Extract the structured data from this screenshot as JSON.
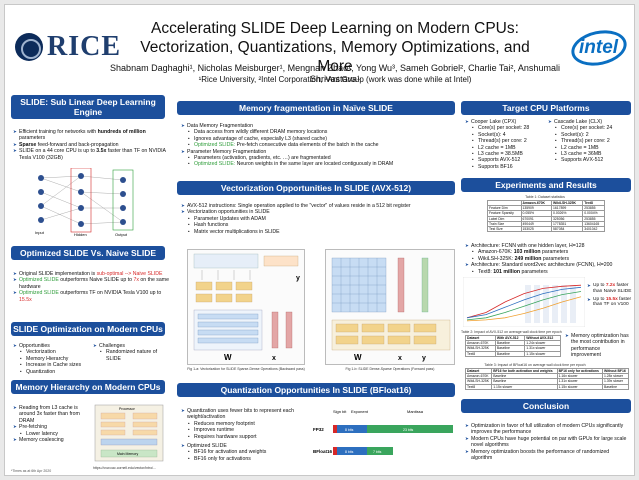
{
  "header": {
    "rice_logo": "RICE",
    "intel_logo": "intel",
    "title_line1": "Accelerating SLIDE Deep Learning on Modern CPUs:",
    "title_line2": "Vectorization, Quantizations, Memory Optimizations, and More",
    "authors": "Shabnam Daghaghi¹, Nicholas Meisburger¹, Mengnan Zhao¹, Yong Wu³, Sameh Gobriel², Charlie Tai², Anshumali Shrivastava¹",
    "affiliations": "¹Rice University, ²Intel Corporation, ³Ant Group (work was done while at Intel)"
  },
  "slide_intro": {
    "title": "SLIDE: Sub Linear Deep Learning Engine",
    "b1_pre": "Efficient training for networks with ",
    "b1_bold": "hundreds of million",
    "b1_post": " parameters",
    "b2_bold": "Sparse",
    "b2_post": " feed-forward and back-propagation",
    "b3_pre": "SLIDE on a 44 core CPU is up to ",
    "b3_bold": "3.5x",
    "b3_post": " faster than TF on NVIDIA Tesla V100 (32GB)",
    "fig_input": "Input",
    "fig_hidden": "Hidden",
    "fig_output": "Output"
  },
  "optimized_vs_naive": {
    "title": "Optimized SLIDE Vs. Naive SLIDE",
    "b1_pre": "Original SLIDE implementation is ",
    "b1_red": "sub-optimal --> Naive SLIDE",
    "b2_green": "Optimized SLIDE",
    "b2_mid": " outperforms Naive SLIDE up to ",
    "b2_red": "7x",
    "b2_post": " on the same hardware",
    "b3_green": "Optimized SLIDE",
    "b3_mid": " outperforms TF on NVIDIA Tesla V100 up to ",
    "b3_red": "15.5x"
  },
  "opt_modern": {
    "title": "SLIDE Optimization on Modern CPUs",
    "opportunities": "Opportunities",
    "opp_items": [
      "Vectorization",
      "Memory Hierarchy",
      "Increase in Cache sizes",
      "Quantization"
    ],
    "challenges": "Challenges",
    "chal_items": [
      "Randomized nature of SLIDE"
    ]
  },
  "mem_hier": {
    "title": "Memory Hierarchy on Modern CPUs",
    "b1": "Reading from L3 cache is around 3x faster than from DRAM",
    "b2": "Pre-fetching",
    "b2_sub": "Lower latency",
    "b3": "Memory coalescing",
    "fig_top": "Processor",
    "fig_bottom": "Main Memory",
    "url": "https://cvw.cac.cornell.edu/vector/intro/..."
  },
  "mem_frag": {
    "title": "Memory fragmentation in Naïve SLIDE",
    "b1": "Data Memory Fragmentation",
    "b1_subs": [
      "Data access from wildly different DRAM memory locations",
      "Ignores advantage of cache, especially L3 (shared cache)"
    ],
    "b1_opt_green": "Optimized SLIDE:",
    "b1_opt": " Pre-fetch consecutive data elements of the batch in the cache",
    "b2": "Parameter Memory Fragmentation",
    "b2_sub": "Parameters (activation, gradients, etc. …) are fragmentated",
    "b2_opt_green": "Optimized SLIDE:",
    "b2_opt": " Neuron weights in the same layer are located contiguously in DRAM"
  },
  "vec": {
    "title": "Vectorization Opportunities In SLIDE (AVX-512)",
    "b1": "AVX-512 instructions: Single operation applied to the \"vector\" of values reside in a 512 bit register",
    "b2": "Vectorization opportunities in SLIDE",
    "b2_subs": [
      "Parameter Updates with ADAM",
      "Hash functions",
      "Matrix vector multiplications in SLIDE"
    ],
    "fig1_label_w": "W",
    "fig1_label_x": "x",
    "fig1_label_y": "y",
    "fig2_label_w": "W",
    "fig2_label_x": "x",
    "fig2_label_y": "y",
    "cap1": "Fig 1-a: Vectorization for SLIDE Sparse-Dense Operations (Backward pass)",
    "cap2": "Fig 1-b: SLIDE Dense-Sparse Operations (Forward pass)"
  },
  "quant": {
    "title": "Quantization Opportunities In SLIDE (BFloat16)",
    "b1": "Quantization uses fewer bits to represent each weight/activation",
    "b1_subs": [
      "Reduces memory footprint",
      "Improves runtime",
      "Requires hardware support"
    ],
    "b2": "Optimized SLIDE",
    "b2_subs": [
      "BF16 for activation and weights",
      "BF16 only for activations"
    ],
    "fig_sign": "Sign bit",
    "fig_exp": "Exponent",
    "fig_mant": "Mantissa",
    "fp32": "FP32",
    "bf16": "BFloat16",
    "fp32_exp": "8 bits",
    "fp32_mant": "23 bits",
    "bf16_exp": "8 bits",
    "bf16_mant": "7 bits"
  },
  "platforms": {
    "title": "Target CPU Platforms",
    "cpx": "Cooper Lake (CPX)",
    "cpx_items": [
      "Core(s) per socket: 28",
      "Socket(s): 4",
      "Thread(s) per core: 2",
      "L2 cache = 1MB",
      "L3 cache = 38.5MB",
      "Supports AVX-512",
      "Supports BF16"
    ],
    "clx": "Cascade Lake (CLX)",
    "clx_items": [
      "Core(s) per socket: 24",
      "Socket(s): 2",
      "Thread(s) per core: 2",
      "L2 cache = 1MB",
      "L3 cache = 36MB",
      "Supports AVX-512"
    ]
  },
  "experiments": {
    "title": "Experiments and Results",
    "table1_caption": "Table 1: Dataset statistics",
    "table1_header": [
      "",
      "Amazon-670K",
      "WikiLSH-325K",
      "Text8"
    ],
    "table1_rows": [
      [
        "Feature Dim",
        "135909",
        "1617899",
        "253855"
      ],
      [
        "Feature Sparsity",
        "0.055%",
        "0.0026%",
        "0.0004%"
      ],
      [
        "Label Dim",
        "670091",
        "325056",
        "253855"
      ],
      [
        "Train Size",
        "490449",
        "1778351",
        "13604165"
      ],
      [
        "Test Size",
        "153025",
        "587084",
        "3401042"
      ]
    ],
    "b1": "Architecture: FCNN with one hidden layer, H=128",
    "b1_subs_pre": [
      "Amazon-670K: ",
      "WikiLSH-325K: "
    ],
    "b1_subs_bold": [
      "103 million",
      "249 million"
    ],
    "b1_subs_post": [
      " parameters",
      " parameters"
    ],
    "b2": "Architecture: Standard word2vec architecture (FCNN), H=200",
    "b2_sub_pre": "Text8: ",
    "b2_sub_bold": "101 million",
    "b2_sub_post": " parameters",
    "speed1_pre": "Up to ",
    "speed1_red": "7.2x",
    "speed1_post": " faster than Naïve SLIDE",
    "speed2_pre": "Up to ",
    "speed2_red": "15.5x",
    "speed2_post": " faster than TF on V100",
    "table2_caption": "Table 2: Impact of AVX-512 on average wall clock time per epoch",
    "table2_header": [
      "Dataset",
      "With AVX-512",
      "Without AVX-512"
    ],
    "table2_rows": [
      [
        "Amazon-670K",
        "Baseline",
        "1.24x slower"
      ],
      [
        "WikiLSH-325K",
        "Baseline",
        "1.31x slower"
      ],
      [
        "Text8",
        "Baseline",
        "1.15x slower"
      ]
    ],
    "table3_caption": "Table 3: Impact of BFloat16 on average wall clock time per epoch",
    "table3_header": [
      "Dataset",
      "BF16 for both activation and weights",
      "BF16 only for activations",
      "Without BF16"
    ],
    "table3_rows": [
      [
        "Amazon-670K",
        "Baseline",
        "1.16x slower",
        "1.28x slower"
      ],
      [
        "WikiLSH-325K",
        "Baseline",
        "1.31x slower",
        "1.39x slower"
      ],
      [
        "Text8",
        "1.15x slower",
        "1.15x slower",
        "Baseline"
      ]
    ],
    "mem_opt_note": "Memory optimization has the most contribution in performance improvement"
  },
  "conclusion": {
    "title": "Conclusion",
    "items": [
      "Optimization in favor of full utilization of modern CPUs significantly improves the performance",
      "Modern CPUs have huge potential on par with GPUs for large scale novel algorithms",
      "Memory optimization boosts the performance of randomized algorithm"
    ]
  },
  "footnote": "*Times as at 6th Apr 2020",
  "chart_data": {
    "type": "line",
    "title": "",
    "xlabel": "",
    "ylabel": "",
    "series": [
      {
        "values": [
          0.05,
          0.1,
          0.2,
          0.28,
          0.33,
          0.35,
          0.36
        ]
      },
      {
        "values": [
          0.05,
          0.08,
          0.15,
          0.22,
          0.28,
          0.32,
          0.34
        ]
      },
      {
        "values": [
          0.03,
          0.05,
          0.1,
          0.16,
          0.22,
          0.27,
          0.3
        ]
      },
      {
        "values": [
          0.02,
          0.03,
          0.05,
          0.09,
          0.14,
          0.2,
          0.25
        ]
      }
    ]
  },
  "colors": {
    "header_blue": "#1c4f9c",
    "red": "#d62828",
    "green": "#2f9d3a",
    "fp32_green": "#3aa55d",
    "bf16_blue": "#2d6fbf"
  }
}
